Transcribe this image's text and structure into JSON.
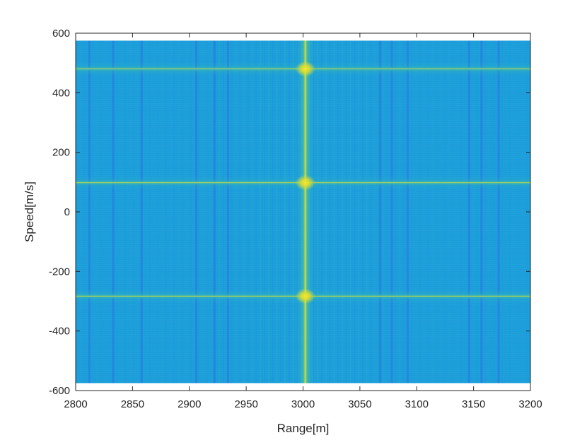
{
  "chart_data": {
    "type": "heatmap",
    "title": "",
    "xlabel": "Range[m]",
    "ylabel": "Speed[m/s]",
    "xlim": [
      2800,
      3200
    ],
    "ylim": [
      -600,
      600
    ],
    "xticks": [
      2800,
      2850,
      2900,
      2950,
      3000,
      3050,
      3100,
      3150,
      3200
    ],
    "yticks": [
      -600,
      -400,
      -200,
      0,
      200,
      400,
      600
    ],
    "xtick_labels": [
      "2800",
      "2850",
      "2900",
      "2950",
      "3000",
      "3050",
      "3100",
      "3150",
      "3200"
    ],
    "ytick_labels": [
      "-600",
      "-400",
      "-200",
      "0",
      "200",
      "400",
      "600"
    ],
    "data_extent": {
      "x": [
        2800,
        3200
      ],
      "y": [
        -575,
        575
      ]
    },
    "grid": false,
    "colormap": "parula",
    "colors": {
      "background": "#1ea1dc",
      "low": "#2a72e0",
      "mid": "#33b7b7",
      "high": "#e0df2e",
      "peak": "#fde726"
    },
    "peaks": [
      {
        "range": 3002,
        "speed": 480
      },
      {
        "range": 3002,
        "speed": 98
      },
      {
        "range": 3002,
        "speed": -283
      }
    ],
    "range_ridge": {
      "range": 3002
    },
    "speed_ridges": [
      480,
      98,
      -283
    ],
    "low_columns": [
      2812,
      2833,
      2858,
      2906,
      2922,
      2934,
      3068,
      3078,
      3092,
      3146,
      3157,
      3172
    ]
  }
}
